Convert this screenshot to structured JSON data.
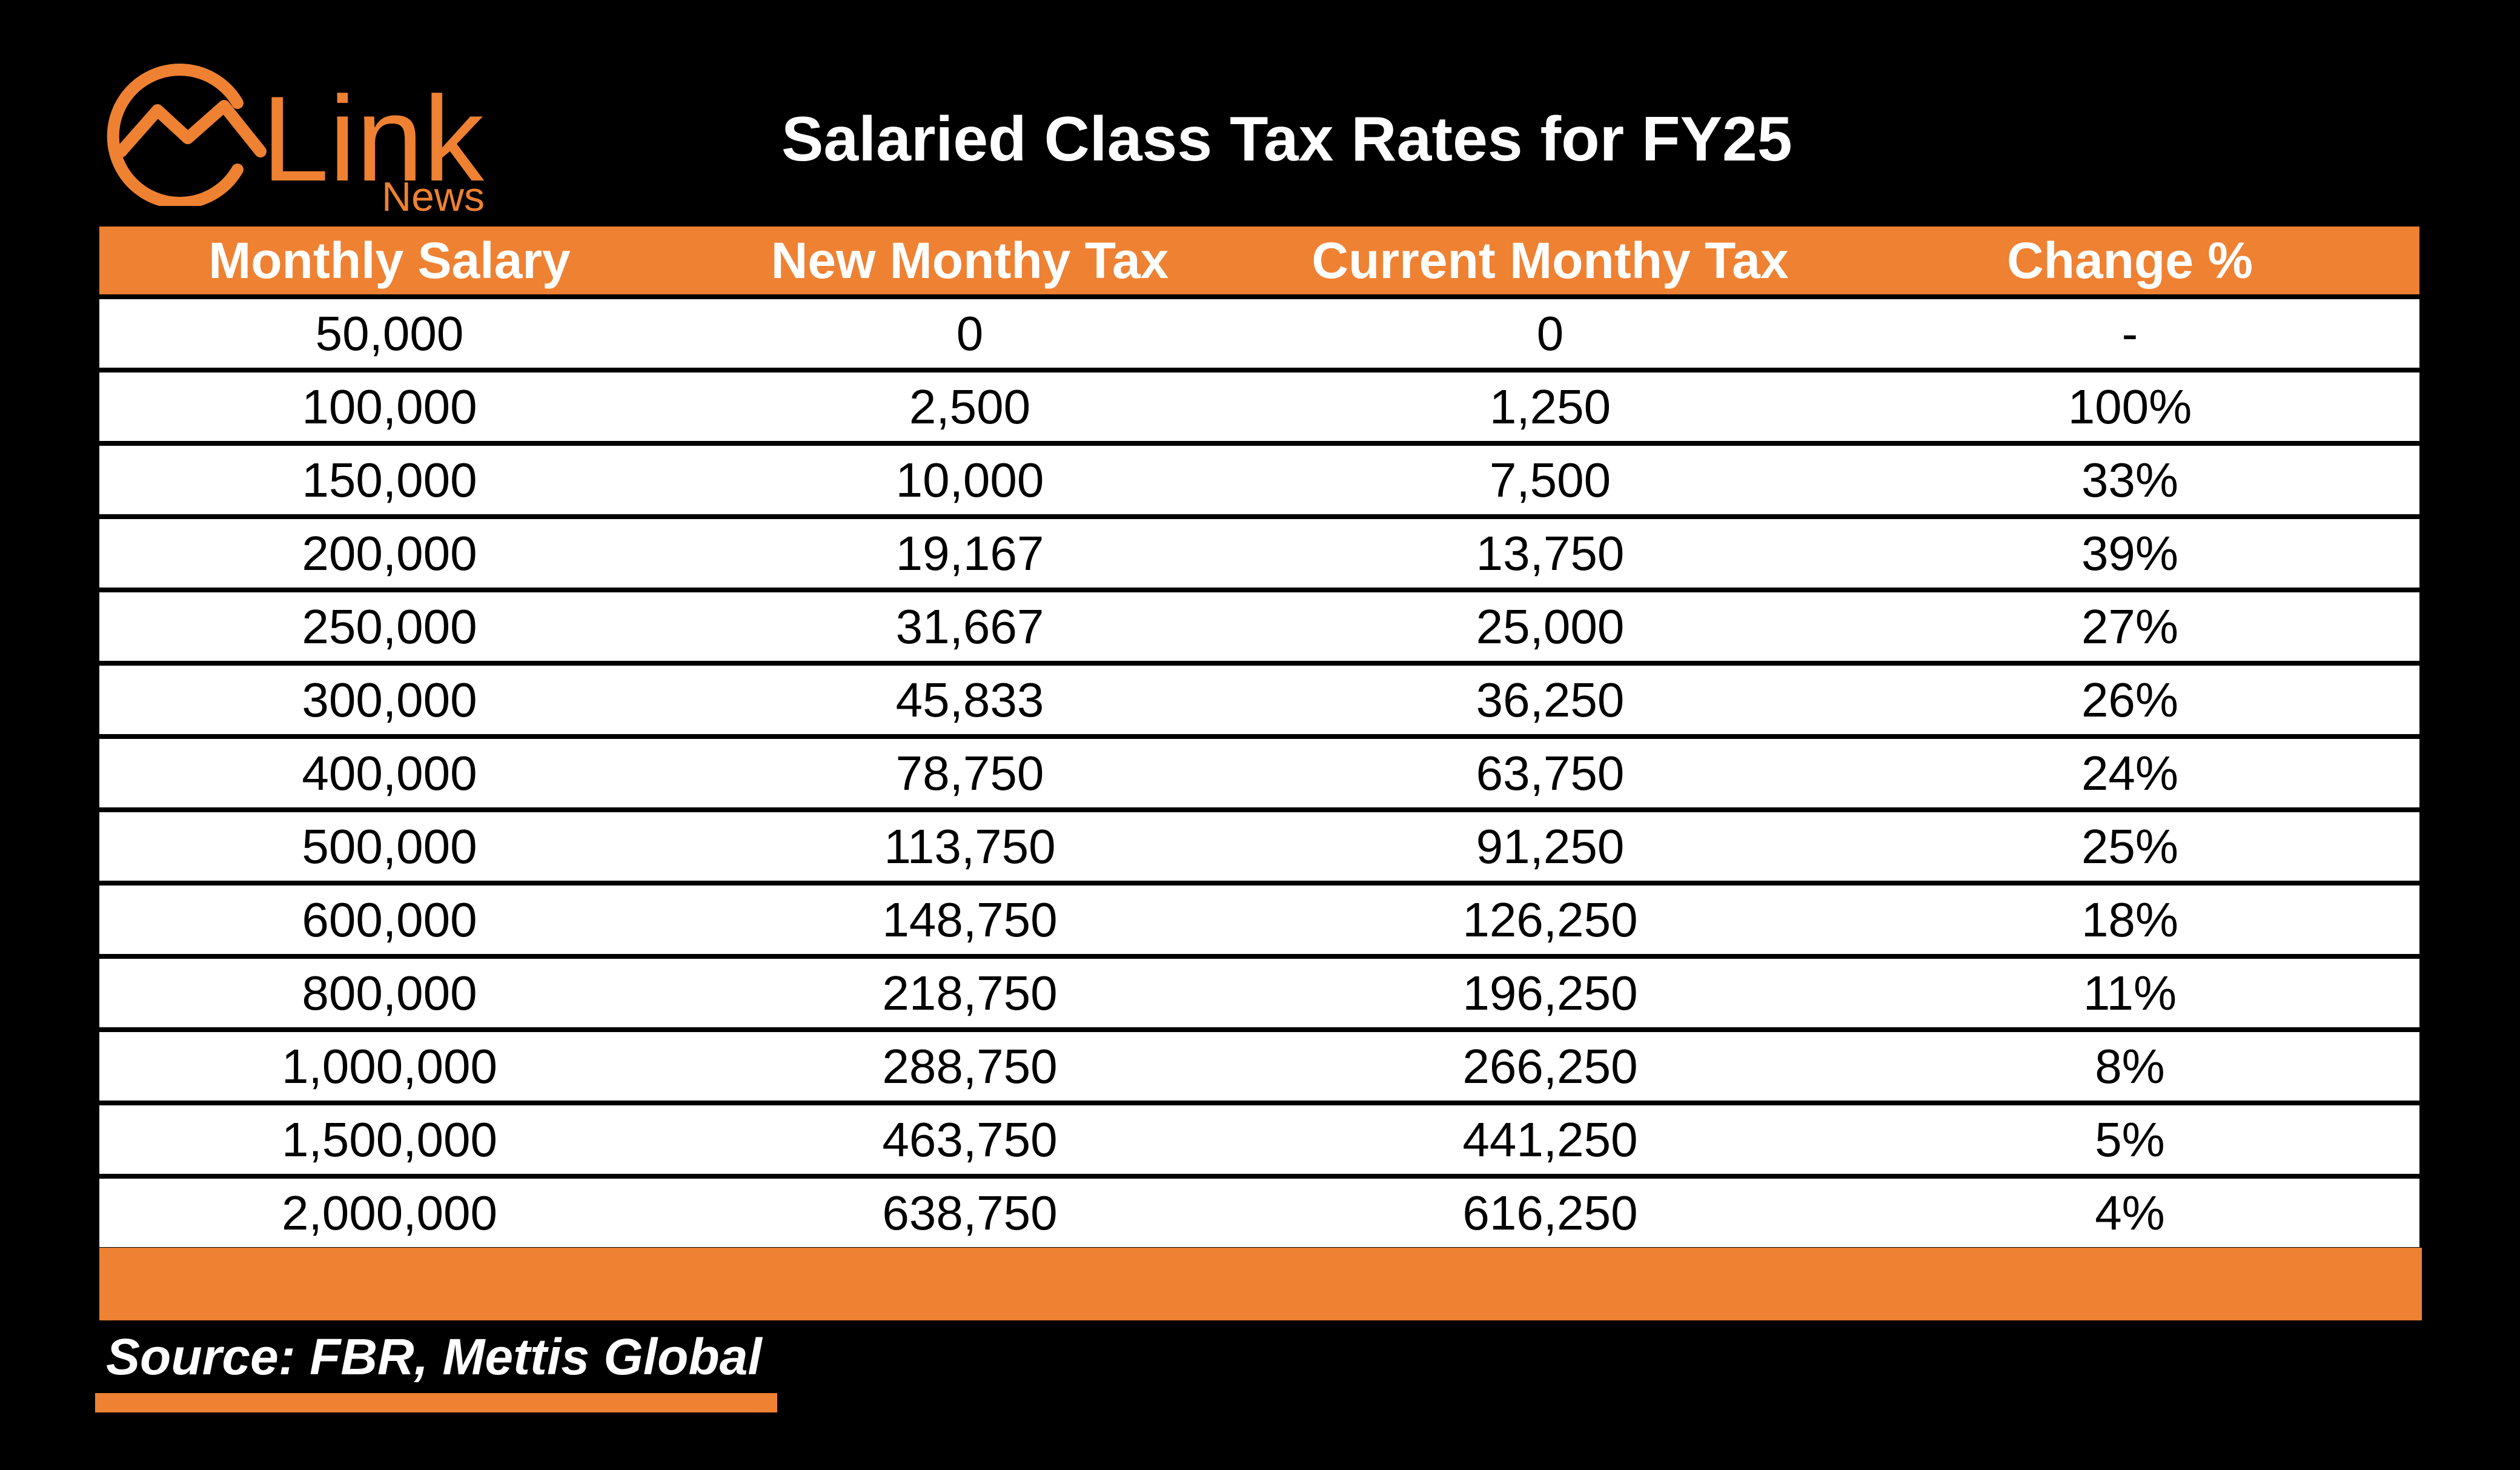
{
  "brand": {
    "name": "Link",
    "sub": "News",
    "icon": "chart-line-icon",
    "accent_color": "#ef8133"
  },
  "title": "Salaried Class Tax Rates for FY25",
  "source": "Source: FBR, Mettis Global",
  "chart_data": {
    "type": "table",
    "title": "Salaried Class Tax Rates for FY25",
    "columns": [
      "Monthly Salary",
      "New Monthy Tax",
      "Current Monthy Tax",
      "Change %"
    ],
    "rows": [
      [
        "50,000",
        "0",
        "0",
        "-"
      ],
      [
        "100,000",
        "2,500",
        "1,250",
        "100%"
      ],
      [
        "150,000",
        "10,000",
        "7,500",
        "33%"
      ],
      [
        "200,000",
        "19,167",
        "13,750",
        "39%"
      ],
      [
        "250,000",
        "31,667",
        "25,000",
        "27%"
      ],
      [
        "300,000",
        "45,833",
        "36,250",
        "26%"
      ],
      [
        "400,000",
        "78,750",
        "63,750",
        "24%"
      ],
      [
        "500,000",
        "113,750",
        "91,250",
        "25%"
      ],
      [
        "600,000",
        "148,750",
        "126,250",
        "18%"
      ],
      [
        "800,000",
        "218,750",
        "196,250",
        "11%"
      ],
      [
        "1,000,000",
        "288,750",
        "266,250",
        "8%"
      ],
      [
        "1,500,000",
        "463,750",
        "441,250",
        "5%"
      ],
      [
        "2,000,000",
        "638,750",
        "616,250",
        "4%"
      ]
    ],
    "source": "Source: FBR, Mettis Global"
  }
}
